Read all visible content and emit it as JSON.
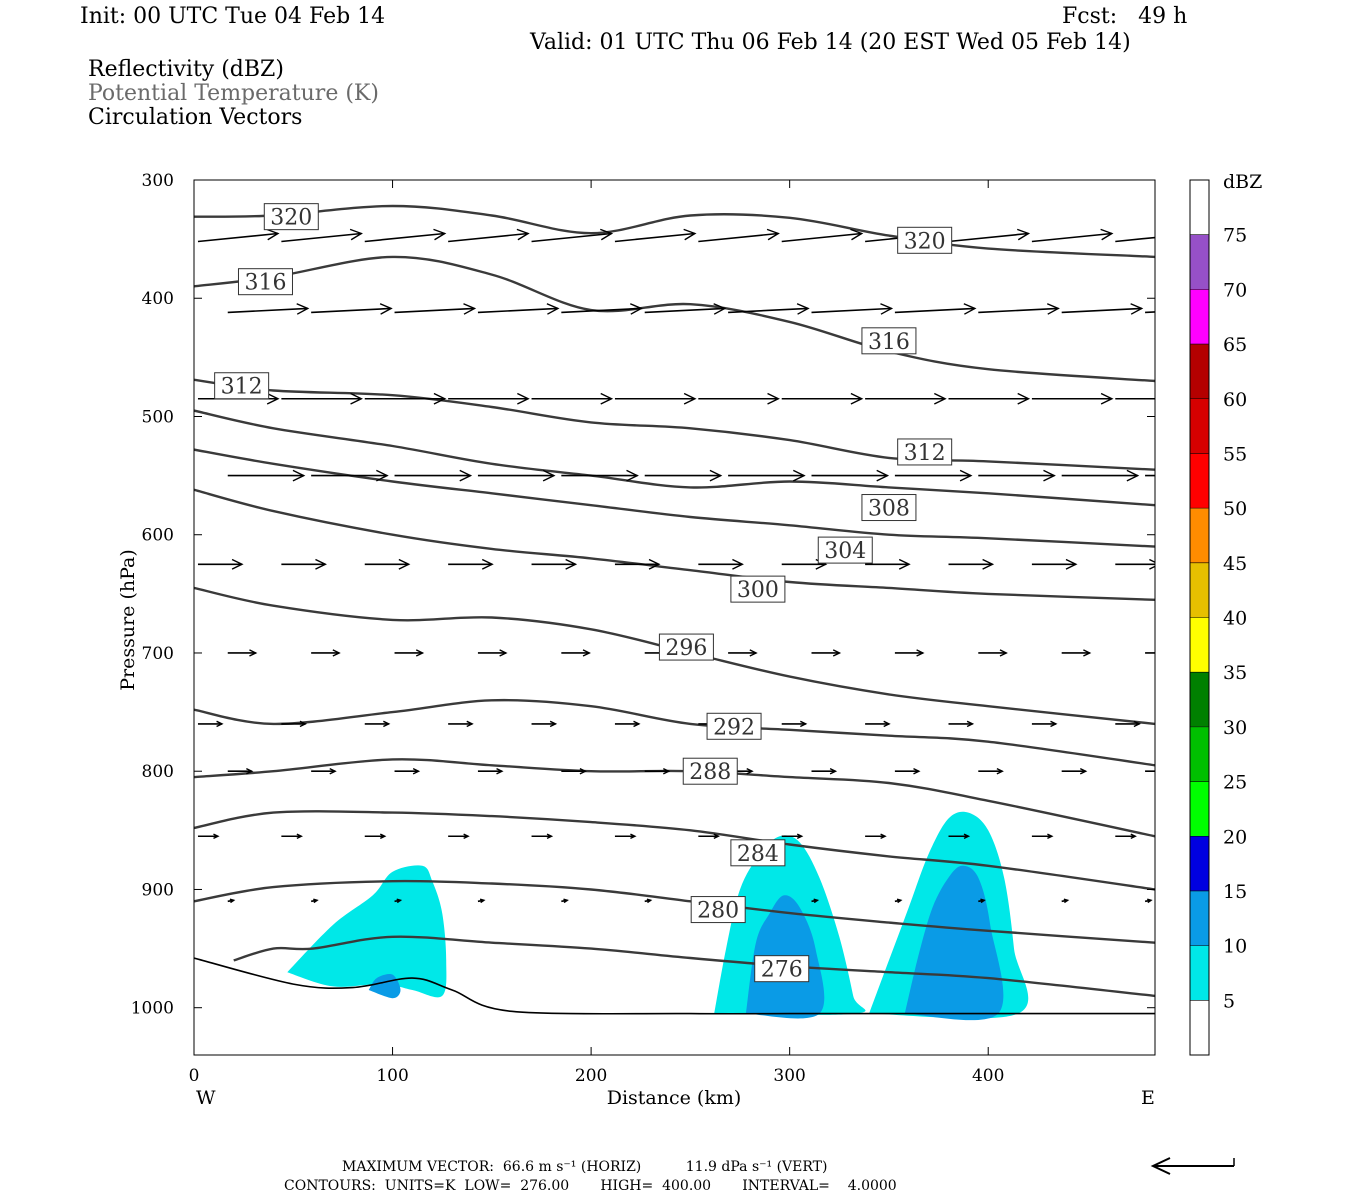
{
  "header": {
    "init": "Init: 00 UTC Tue 04 Feb 14",
    "fcst": "Fcst:   49 h",
    "valid": "Valid: 01 UTC Thu 06 Feb 14 (20 EST Wed 05 Feb 14)"
  },
  "legend": {
    "line1": "Reflectivity (dBZ)",
    "line2": "Potential Temperature (K)",
    "line3": "Circulation Vectors"
  },
  "colors": {
    "contour": "#3a3a3a",
    "refl_5": "#00e8e8",
    "refl_10": "#0a9be6",
    "refl_15": "#0000e0"
  },
  "chart_data": {
    "type": "cross-section",
    "xlabel": "Distance (km)",
    "ylabel": "Pressure (hPa)",
    "xlim": [
      0,
      484
    ],
    "ylim": [
      1040,
      300
    ],
    "x_ticks": [
      "0",
      "100",
      "200",
      "300",
      "400"
    ],
    "y_ticks": [
      "300",
      "400",
      "500",
      "600",
      "700",
      "800",
      "900",
      "1000"
    ],
    "x_end_labels": {
      "left": "W",
      "right": "E"
    },
    "colorbar": {
      "unit": "dBZ",
      "levels": [
        "5",
        "10",
        "15",
        "20",
        "25",
        "30",
        "35",
        "40",
        "45",
        "50",
        "55",
        "60",
        "65",
        "70",
        "75"
      ],
      "colors": [
        "#ffffff",
        "#00e8e8",
        "#0a9be6",
        "#0000e0",
        "#00ff00",
        "#00c000",
        "#008000",
        "#ffff00",
        "#e6c000",
        "#ff8c00",
        "#ff0000",
        "#d60000",
        "#b40000",
        "#ff00ff",
        "#9650c8",
        "#ffffff"
      ]
    },
    "theta_labels": [
      {
        "value": "320",
        "x": 49,
        "p": 331
      },
      {
        "value": "320",
        "x": 368,
        "p": 351
      },
      {
        "value": "316",
        "x": 36,
        "p": 386
      },
      {
        "value": "316",
        "x": 350,
        "p": 436
      },
      {
        "value": "312",
        "x": 24,
        "p": 474
      },
      {
        "value": "312",
        "x": 368,
        "p": 530
      },
      {
        "value": "308",
        "x": 350,
        "p": 577
      },
      {
        "value": "304",
        "x": 328,
        "p": 613
      },
      {
        "value": "300",
        "x": 284,
        "p": 646
      },
      {
        "value": "296",
        "x": 248,
        "p": 695
      },
      {
        "value": "292",
        "x": 272,
        "p": 762
      },
      {
        "value": "288",
        "x": 260,
        "p": 800
      },
      {
        "value": "284",
        "x": 284,
        "p": 869
      },
      {
        "value": "280",
        "x": 264,
        "p": 917
      },
      {
        "value": "276",
        "x": 296,
        "p": 967
      }
    ],
    "theta_contours": [
      {
        "x": [
          0,
          40,
          100,
          150,
          200,
          250,
          300,
          350,
          400,
          484
        ],
        "p": [
          331,
          330,
          322,
          330,
          345,
          330,
          332,
          347,
          358,
          365
        ]
      },
      {
        "x": [
          0,
          40,
          100,
          150,
          200,
          250,
          300,
          350,
          400,
          484
        ],
        "p": [
          390,
          382,
          365,
          380,
          410,
          405,
          420,
          445,
          460,
          470
        ]
      },
      {
        "x": [
          0,
          40,
          100,
          150,
          200,
          250,
          300,
          350,
          400,
          484
        ],
        "p": [
          469,
          478,
          482,
          492,
          505,
          510,
          520,
          535,
          538,
          545
        ]
      },
      {
        "x": [
          0,
          40,
          100,
          150,
          200,
          250,
          300,
          350,
          400,
          484
        ],
        "p": [
          495,
          510,
          525,
          540,
          550,
          560,
          555,
          560,
          565,
          575
        ]
      },
      {
        "x": [
          0,
          40,
          100,
          150,
          200,
          250,
          300,
          350,
          400,
          484
        ],
        "p": [
          528,
          540,
          555,
          565,
          575,
          585,
          592,
          600,
          603,
          610
        ]
      },
      {
        "x": [
          0,
          40,
          100,
          150,
          200,
          250,
          300,
          350,
          400,
          484
        ],
        "p": [
          562,
          580,
          600,
          612,
          620,
          630,
          640,
          645,
          650,
          655
        ]
      },
      {
        "x": [
          0,
          40,
          100,
          150,
          200,
          250,
          300,
          350,
          400,
          484
        ],
        "p": [
          645,
          660,
          672,
          670,
          680,
          700,
          720,
          735,
          745,
          760
        ]
      },
      {
        "x": [
          0,
          40,
          100,
          150,
          200,
          250,
          300,
          350,
          400,
          484
        ],
        "p": [
          748,
          760,
          750,
          740,
          745,
          760,
          765,
          770,
          775,
          795
        ]
      },
      {
        "x": [
          0,
          40,
          100,
          150,
          200,
          250,
          300,
          350,
          400,
          484
        ],
        "p": [
          805,
          800,
          790,
          795,
          800,
          800,
          805,
          810,
          825,
          855
        ]
      },
      {
        "x": [
          0,
          40,
          100,
          150,
          200,
          250,
          300,
          350,
          400,
          484
        ],
        "p": [
          848,
          835,
          835,
          838,
          843,
          850,
          862,
          872,
          880,
          900
        ]
      },
      {
        "x": [
          0,
          40,
          100,
          150,
          200,
          250,
          300,
          350,
          400,
          484
        ],
        "p": [
          910,
          898,
          893,
          895,
          900,
          910,
          920,
          928,
          935,
          945
        ]
      },
      {
        "x": [
          20,
          40,
          60,
          100,
          150,
          200,
          250,
          300,
          350,
          400,
          484
        ],
        "p": [
          960,
          950,
          950,
          940,
          945,
          950,
          958,
          965,
          970,
          975,
          990
        ]
      },
      {
        "x": [
          0,
          50,
          80,
          110,
          130,
          160,
          250,
          300,
          340,
          484
        ],
        "p": [
          958,
          980,
          983,
          975,
          985,
          1003,
          1005,
          1005,
          1005,
          1005
        ]
      }
    ],
    "reflectivity_regions": [
      {
        "level": 5,
        "x": [
          47,
          70,
          90,
          100,
          115,
          120,
          125,
          127,
          125,
          110,
          95,
          70,
          47
        ],
        "p": [
          970,
          930,
          905,
          885,
          880,
          893,
          920,
          960,
          990,
          985,
          980,
          982,
          970
        ]
      },
      {
        "level": 10,
        "x": [
          88,
          92,
          100,
          104,
          100,
          88
        ],
        "p": [
          985,
          975,
          972,
          985,
          992,
          985
        ]
      },
      {
        "level": 5,
        "x": [
          262,
          268,
          275,
          285,
          295,
          305,
          315,
          325,
          332,
          333,
          262
        ],
        "p": [
          1005,
          950,
          900,
          870,
          855,
          860,
          890,
          940,
          990,
          1005,
          1005
        ]
      },
      {
        "level": 10,
        "x": [
          278,
          283,
          290,
          297,
          305,
          313,
          315,
          278
        ],
        "p": [
          1005,
          945,
          920,
          905,
          915,
          950,
          1005,
          1005
        ]
      },
      {
        "level": 5,
        "x": [
          340,
          350,
          360,
          370,
          380,
          390,
          400,
          408,
          413,
          415,
          340
        ],
        "p": [
          1005,
          960,
          915,
          870,
          840,
          835,
          850,
          890,
          950,
          1005,
          1005
        ]
      },
      {
        "level": 10,
        "x": [
          358,
          365,
          372,
          380,
          387,
          395,
          401,
          405,
          358
        ],
        "p": [
          1005,
          955,
          915,
          890,
          880,
          890,
          930,
          1005,
          1005
        ]
      }
    ],
    "vector_rows": [
      {
        "p": 352,
        "dx": 40,
        "dy": -8
      },
      {
        "p": 412,
        "dx": 40,
        "dy": -4
      },
      {
        "p": 485,
        "dx": 40,
        "dy": 0
      },
      {
        "p": 550,
        "dx": 38,
        "dy": 0
      },
      {
        "p": 625,
        "dx": 22,
        "dy": 0
      },
      {
        "p": 700,
        "dx": 14,
        "dy": 0
      },
      {
        "p": 760,
        "dx": 12,
        "dy": 0
      },
      {
        "p": 800,
        "dx": 12,
        "dy": 0
      },
      {
        "p": 855,
        "dx": 10,
        "dy": 0
      },
      {
        "p": 910,
        "dx": 3,
        "dy": -1
      }
    ],
    "footer": {
      "max_vector": "MAXIMUM VECTOR:  66.6 m s⁻¹ (HORIZ)          11.9 dPa s⁻¹ (VERT)",
      "contours": "CONTOURS:  UNITS=K  LOW=  276.00       HIGH=  400.00       INTERVAL=    4.0000"
    }
  }
}
